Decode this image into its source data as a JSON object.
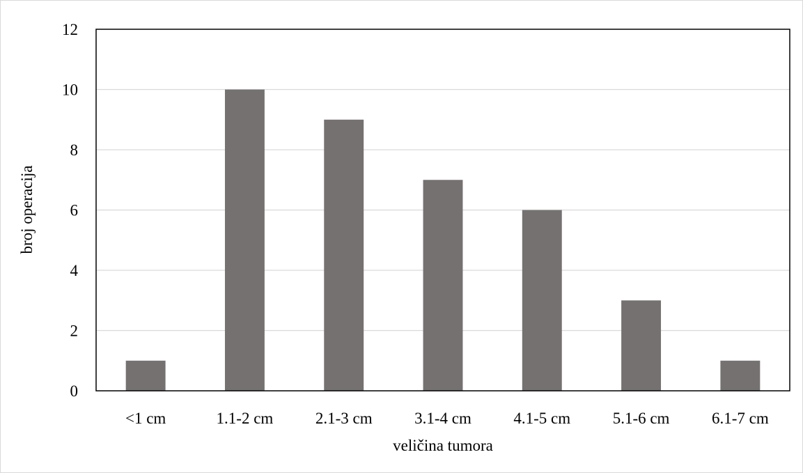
{
  "chart_data": {
    "type": "bar",
    "title": "",
    "xlabel": "veličina tumora",
    "ylabel": "broj operacija",
    "categories": [
      "<1 cm",
      "1.1-2 cm",
      "2.1-3 cm",
      "3.1-4 cm",
      "4.1-5 cm",
      "5.1-6 cm",
      "6.1-7 cm"
    ],
    "values": [
      1,
      10,
      9,
      7,
      6,
      3,
      1
    ],
    "ylim": [
      0,
      12
    ],
    "yticks": [
      0,
      2,
      4,
      6,
      8,
      10,
      12
    ],
    "grid": true,
    "legend": "none",
    "colors": {
      "bar": "#767171",
      "grid": "#d9d9d9",
      "axis": "#000000"
    }
  }
}
